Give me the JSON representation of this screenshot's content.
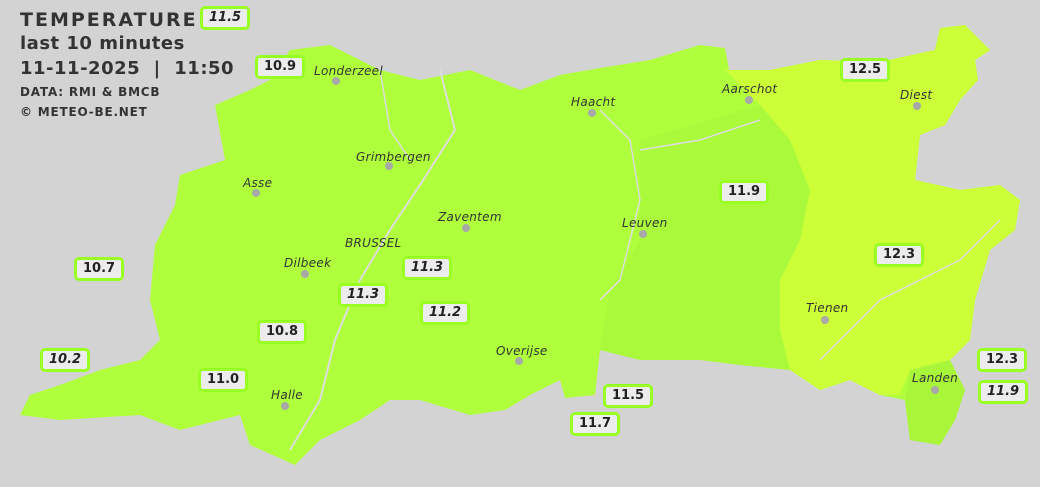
{
  "header": {
    "title": "TEMPERATURE",
    "period": "last 10 minutes",
    "datetime": "11-11-2025  |  11:50",
    "source": "DATA: RMI & BMCB",
    "copyright": "© METEO-BE.NET"
  },
  "colors": {
    "background": "#d3d3d3",
    "zone_11": "#b0ff3c",
    "zone_11_5": "#a8f53a",
    "zone_12": "#ccff38",
    "label_border": "#99ff22"
  },
  "cities": [
    {
      "name": "Londerzeel"
    },
    {
      "name": "Haacht"
    },
    {
      "name": "Aarschot"
    },
    {
      "name": "Diest"
    },
    {
      "name": "Grimbergen"
    },
    {
      "name": "Asse"
    },
    {
      "name": "Zaventem"
    },
    {
      "name": "Leuven"
    },
    {
      "name": "Dilbeek"
    },
    {
      "name": "BRUSSEL"
    },
    {
      "name": "Tienen"
    },
    {
      "name": "Overijse"
    },
    {
      "name": "Halle"
    },
    {
      "name": "Landen"
    }
  ],
  "stations": [
    {
      "value": "11.5",
      "italic": true
    },
    {
      "value": "10.9",
      "italic": false
    },
    {
      "value": "12.5",
      "italic": false
    },
    {
      "value": "11.9",
      "italic": false
    },
    {
      "value": "10.7",
      "italic": false
    },
    {
      "value": "12.3",
      "italic": false
    },
    {
      "value": "11.3",
      "italic": true
    },
    {
      "value": "11.3",
      "italic": true
    },
    {
      "value": "11.2",
      "italic": true
    },
    {
      "value": "10.8",
      "italic": false
    },
    {
      "value": "10.2",
      "italic": true
    },
    {
      "value": "11.0",
      "italic": false
    },
    {
      "value": "11.5",
      "italic": false
    },
    {
      "value": "11.7",
      "italic": false
    },
    {
      "value": "12.3",
      "italic": false
    },
    {
      "value": "11.9",
      "italic": true
    }
  ]
}
